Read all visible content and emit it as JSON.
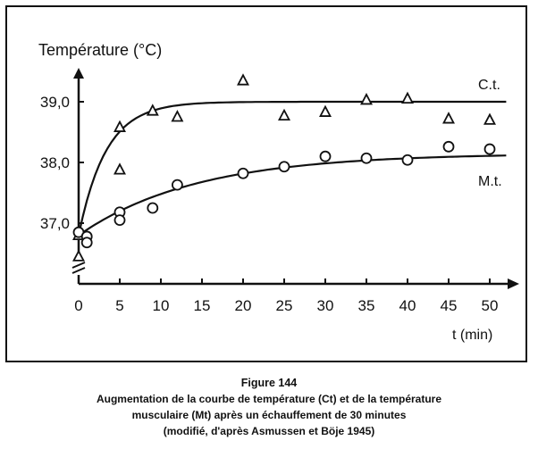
{
  "chart_data": {
    "type": "scatter",
    "title": "Température (°C)",
    "ylabel": "Température (°C)",
    "xlabel": "t (min)",
    "x_ticks": [
      0,
      5,
      10,
      15,
      20,
      25,
      30,
      35,
      40,
      45,
      50
    ],
    "y_ticks": [
      {
        "value": 37.0,
        "label": "37,0"
      },
      {
        "value": 38.0,
        "label": "38,0"
      },
      {
        "value": 39.0,
        "label": "39,0"
      }
    ],
    "xlim": [
      0,
      54
    ],
    "ylim": [
      36.0,
      39.55
    ],
    "axis_break": true,
    "series": [
      {
        "name": "C.t.",
        "marker": "triangle",
        "points": [
          [
            0,
            36.45
          ],
          [
            0,
            36.8
          ],
          [
            5,
            38.58
          ],
          [
            5,
            37.88
          ],
          [
            9,
            38.85
          ],
          [
            12,
            38.75
          ],
          [
            20,
            39.35
          ],
          [
            25,
            38.77
          ],
          [
            30,
            38.83
          ],
          [
            35,
            39.03
          ],
          [
            40,
            39.05
          ],
          [
            45,
            38.72
          ],
          [
            50,
            38.7
          ]
        ],
        "fit_curve": {
          "form": "asymptotic",
          "start": 36.8,
          "plateau": 39.0,
          "rate": 0.3
        }
      },
      {
        "name": "M.t.",
        "marker": "circle",
        "points": [
          [
            0,
            36.85
          ],
          [
            1,
            36.78
          ],
          [
            1,
            36.68
          ],
          [
            5,
            37.18
          ],
          [
            5,
            37.05
          ],
          [
            9,
            37.25
          ],
          [
            12,
            37.63
          ],
          [
            20,
            37.82
          ],
          [
            25,
            37.93
          ],
          [
            30,
            38.1
          ],
          [
            35,
            38.07
          ],
          [
            40,
            38.04
          ],
          [
            45,
            38.26
          ],
          [
            50,
            38.22
          ]
        ],
        "fit_curve": {
          "form": "asymptotic",
          "start": 36.8,
          "plateau": 38.15,
          "rate": 0.07
        }
      }
    ]
  },
  "caption": {
    "title": "Figure 144",
    "line1": "Augmentation de la courbe de température (Ct) et de la température",
    "line2": "musculaire (Mt) après un échauffement de 30 minutes",
    "line3": "(modifié, d'après Asmussen et Böje 1945)"
  }
}
